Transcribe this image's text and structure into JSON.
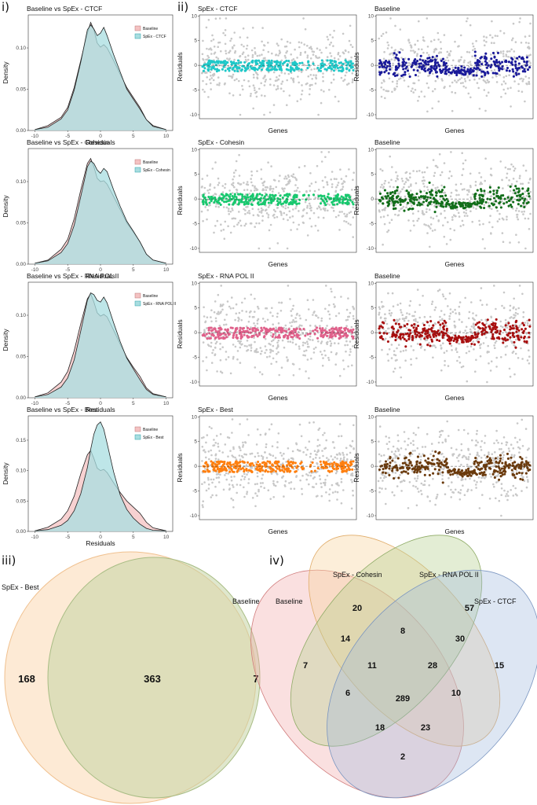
{
  "panel_letters": [
    "i)",
    "ii)",
    "iii)",
    "iv)"
  ],
  "colors": {
    "baseline_fill": "#f4c2c2",
    "spex_fill": "#a8dde0",
    "overlap_fill": "#b5cfcc",
    "grey_points": "#c8c8c8",
    "ctcf": "#1ec8c8",
    "cohesin": "#18c86e",
    "rnapol": "#e0608a",
    "best": "#ff7f0e",
    "baseline_ctcf": "#1a1a9a",
    "baseline_cohesin": "#126e1a",
    "baseline_rnapol": "#a80f0f",
    "baseline_best": "#6b3a0c"
  },
  "chart_data": [
    {
      "type": "area",
      "title": "Baseline vs SpEx - CTCF",
      "xlabel": "Residuals",
      "ylabel": "Density",
      "xlim": [
        -11,
        11
      ],
      "ylim": [
        0,
        0.14
      ],
      "xticks": [
        -10,
        -5,
        0,
        5,
        10
      ],
      "yticks": [
        "0.00",
        "0.05",
        "0.10"
      ],
      "legend": "top-right",
      "x": [
        -10,
        -8,
        -6,
        -5,
        -4,
        -3,
        -2,
        -1.5,
        -1,
        -0.5,
        0,
        0.5,
        1,
        2,
        3,
        4,
        5,
        6,
        7,
        8,
        10
      ],
      "series": [
        {
          "name": "Baseline",
          "values": [
            0.001,
            0.006,
            0.016,
            0.028,
            0.052,
            0.085,
            0.118,
            0.131,
            0.122,
            0.106,
            0.101,
            0.104,
            0.1,
            0.085,
            0.068,
            0.052,
            0.04,
            0.028,
            0.013,
            0.006,
            0.001
          ]
        },
        {
          "name": "SpEx - CTCF",
          "values": [
            0.001,
            0.004,
            0.014,
            0.025,
            0.049,
            0.083,
            0.122,
            0.128,
            0.123,
            0.115,
            0.118,
            0.125,
            0.115,
            0.092,
            0.071,
            0.05,
            0.038,
            0.026,
            0.013,
            0.005,
            0.001
          ]
        }
      ]
    },
    {
      "type": "area",
      "title": "Baseline vs SpEx - Cohesin",
      "xlabel": "Residuals",
      "ylabel": "Density",
      "xlim": [
        -11,
        11
      ],
      "ylim": [
        0,
        0.14
      ],
      "xticks": [
        -10,
        -5,
        0,
        5,
        10
      ],
      "yticks": [
        "0.00",
        "0.05",
        "0.10"
      ],
      "legend": "top-right",
      "x": [
        -10,
        -8,
        -6,
        -5,
        -4,
        -3,
        -2,
        -1.5,
        -1,
        -0.5,
        0,
        0.5,
        1,
        2,
        3,
        4,
        5,
        6,
        7,
        8,
        10
      ],
      "series": [
        {
          "name": "Baseline",
          "values": [
            0.001,
            0.005,
            0.018,
            0.03,
            0.055,
            0.09,
            0.122,
            0.128,
            0.118,
            0.104,
            0.1,
            0.101,
            0.097,
            0.082,
            0.066,
            0.05,
            0.039,
            0.027,
            0.012,
            0.005,
            0.001
          ]
        },
        {
          "name": "SpEx - Cohesin",
          "values": [
            0.001,
            0.004,
            0.014,
            0.025,
            0.047,
            0.082,
            0.118,
            0.125,
            0.122,
            0.114,
            0.11,
            0.116,
            0.112,
            0.09,
            0.07,
            0.052,
            0.04,
            0.027,
            0.012,
            0.005,
            0.001
          ]
        }
      ]
    },
    {
      "type": "area",
      "title": "Baseline vs SpEx - RNA POL II",
      "xlabel": "Residuals",
      "ylabel": "Density",
      "xlim": [
        -11,
        11
      ],
      "ylim": [
        0,
        0.14
      ],
      "xticks": [
        -10,
        -5,
        0,
        5,
        10
      ],
      "yticks": [
        "0.00",
        "0.05",
        "0.10"
      ],
      "legend": "top-right",
      "x": [
        -10,
        -8,
        -6,
        -5,
        -4,
        -3,
        -2,
        -1.5,
        -1,
        -0.5,
        0,
        0.5,
        1,
        2,
        3,
        4,
        5,
        6,
        7,
        8,
        10
      ],
      "series": [
        {
          "name": "Baseline",
          "values": [
            0.001,
            0.006,
            0.019,
            0.032,
            0.057,
            0.09,
            0.12,
            0.126,
            0.116,
            0.103,
            0.099,
            0.101,
            0.098,
            0.082,
            0.065,
            0.049,
            0.037,
            0.026,
            0.012,
            0.005,
            0.001
          ]
        },
        {
          "name": "SpEx - RNA POL II",
          "values": [
            0.001,
            0.004,
            0.013,
            0.024,
            0.046,
            0.081,
            0.118,
            0.127,
            0.125,
            0.118,
            0.116,
            0.122,
            0.115,
            0.091,
            0.068,
            0.048,
            0.035,
            0.022,
            0.01,
            0.004,
            0.001
          ]
        }
      ]
    },
    {
      "type": "area",
      "title": "Baseline vs SpEx - Best",
      "xlabel": "Residuals",
      "ylabel": "Density",
      "xlim": [
        -11,
        11
      ],
      "ylim": [
        0,
        0.19
      ],
      "xticks": [
        -10,
        -5,
        0,
        5,
        10
      ],
      "yticks": [
        "0.00",
        "0.05",
        "0.10",
        "0.15"
      ],
      "legend": "top-right",
      "x": [
        -10,
        -8,
        -6,
        -5,
        -4,
        -3,
        -2,
        -1.5,
        -1,
        -0.5,
        0,
        0.5,
        1,
        2,
        3,
        4,
        5,
        6,
        7,
        8,
        10
      ],
      "series": [
        {
          "name": "Baseline",
          "values": [
            0.001,
            0.007,
            0.02,
            0.034,
            0.058,
            0.095,
            0.126,
            0.133,
            0.12,
            0.104,
            0.1,
            0.102,
            0.097,
            0.08,
            0.064,
            0.05,
            0.04,
            0.03,
            0.015,
            0.006,
            0.001
          ]
        },
        {
          "name": "SpEx - Best",
          "values": [
            0.001,
            0.003,
            0.01,
            0.018,
            0.034,
            0.062,
            0.105,
            0.135,
            0.16,
            0.175,
            0.18,
            0.168,
            0.145,
            0.098,
            0.06,
            0.036,
            0.022,
            0.012,
            0.005,
            0.002,
            0.001
          ]
        }
      ]
    },
    {
      "type": "scatter",
      "title": "SpEx - CTCF",
      "xlabel": "Genes",
      "ylabel": "Residuals",
      "ylim": [
        -10.8,
        10.2
      ],
      "yticks": [
        -10,
        -5,
        0,
        5,
        10
      ],
      "highlight_color": "#1ec8c8"
    },
    {
      "type": "scatter",
      "title": "Baseline",
      "xlabel": "Genes",
      "ylabel": "Residuals",
      "ylim": [
        -10.8,
        10.2
      ],
      "yticks": [
        -10,
        -5,
        0,
        5,
        10
      ],
      "highlight_color": "#1a1a9a"
    },
    {
      "type": "scatter",
      "title": "SpEx - Cohesin",
      "xlabel": "Genes",
      "ylabel": "Residuals",
      "ylim": [
        -10.8,
        10.2
      ],
      "yticks": [
        -10,
        -5,
        0,
        5,
        10
      ],
      "highlight_color": "#18c86e"
    },
    {
      "type": "scatter",
      "title": "Baseline",
      "xlabel": "Genes",
      "ylabel": "Residuals",
      "ylim": [
        -10.8,
        10.2
      ],
      "yticks": [
        -10,
        -5,
        0,
        5,
        10
      ],
      "highlight_color": "#126e1a"
    },
    {
      "type": "scatter",
      "title": "SpEx - RNA POL II",
      "xlabel": "Genes",
      "ylabel": "Residuals",
      "ylim": [
        -10.8,
        10.2
      ],
      "yticks": [
        -10,
        -5,
        0,
        5,
        10
      ],
      "highlight_color": "#e0608a"
    },
    {
      "type": "scatter",
      "title": "Baseline",
      "xlabel": "Genes",
      "ylabel": "Residuals",
      "ylim": [
        -10.8,
        10.2
      ],
      "yticks": [
        -10,
        -5,
        0,
        5,
        10
      ],
      "highlight_color": "#a80f0f"
    },
    {
      "type": "scatter",
      "title": "SpEx - Best",
      "xlabel": "Genes",
      "ylabel": "Residuals",
      "ylim": [
        -10.8,
        10.2
      ],
      "yticks": [
        -10,
        -5,
        0,
        5,
        10
      ],
      "highlight_color": "#ff7f0e"
    },
    {
      "type": "scatter",
      "title": "Baseline",
      "xlabel": "Genes",
      "ylabel": "Residuals",
      "ylim": [
        -10.8,
        10.2
      ],
      "yticks": [
        -10,
        -5,
        0,
        5,
        10
      ],
      "highlight_color": "#6b3a0c"
    }
  ],
  "venn2": {
    "sets": [
      "SpEx - Best",
      "Baseline"
    ],
    "counts": {
      "only_first": "168",
      "both": "363",
      "only_second": "7"
    }
  },
  "venn4": {
    "sets": [
      "Baseline",
      "SpEx - Cohesin",
      "SpEx - RNA POL II",
      "SpEx - CTCF"
    ],
    "counts": [
      "7",
      "20",
      "57",
      "15",
      "14",
      "8",
      "30",
      "11",
      "28",
      "289",
      "6",
      "10",
      "18",
      "23",
      "2"
    ]
  }
}
